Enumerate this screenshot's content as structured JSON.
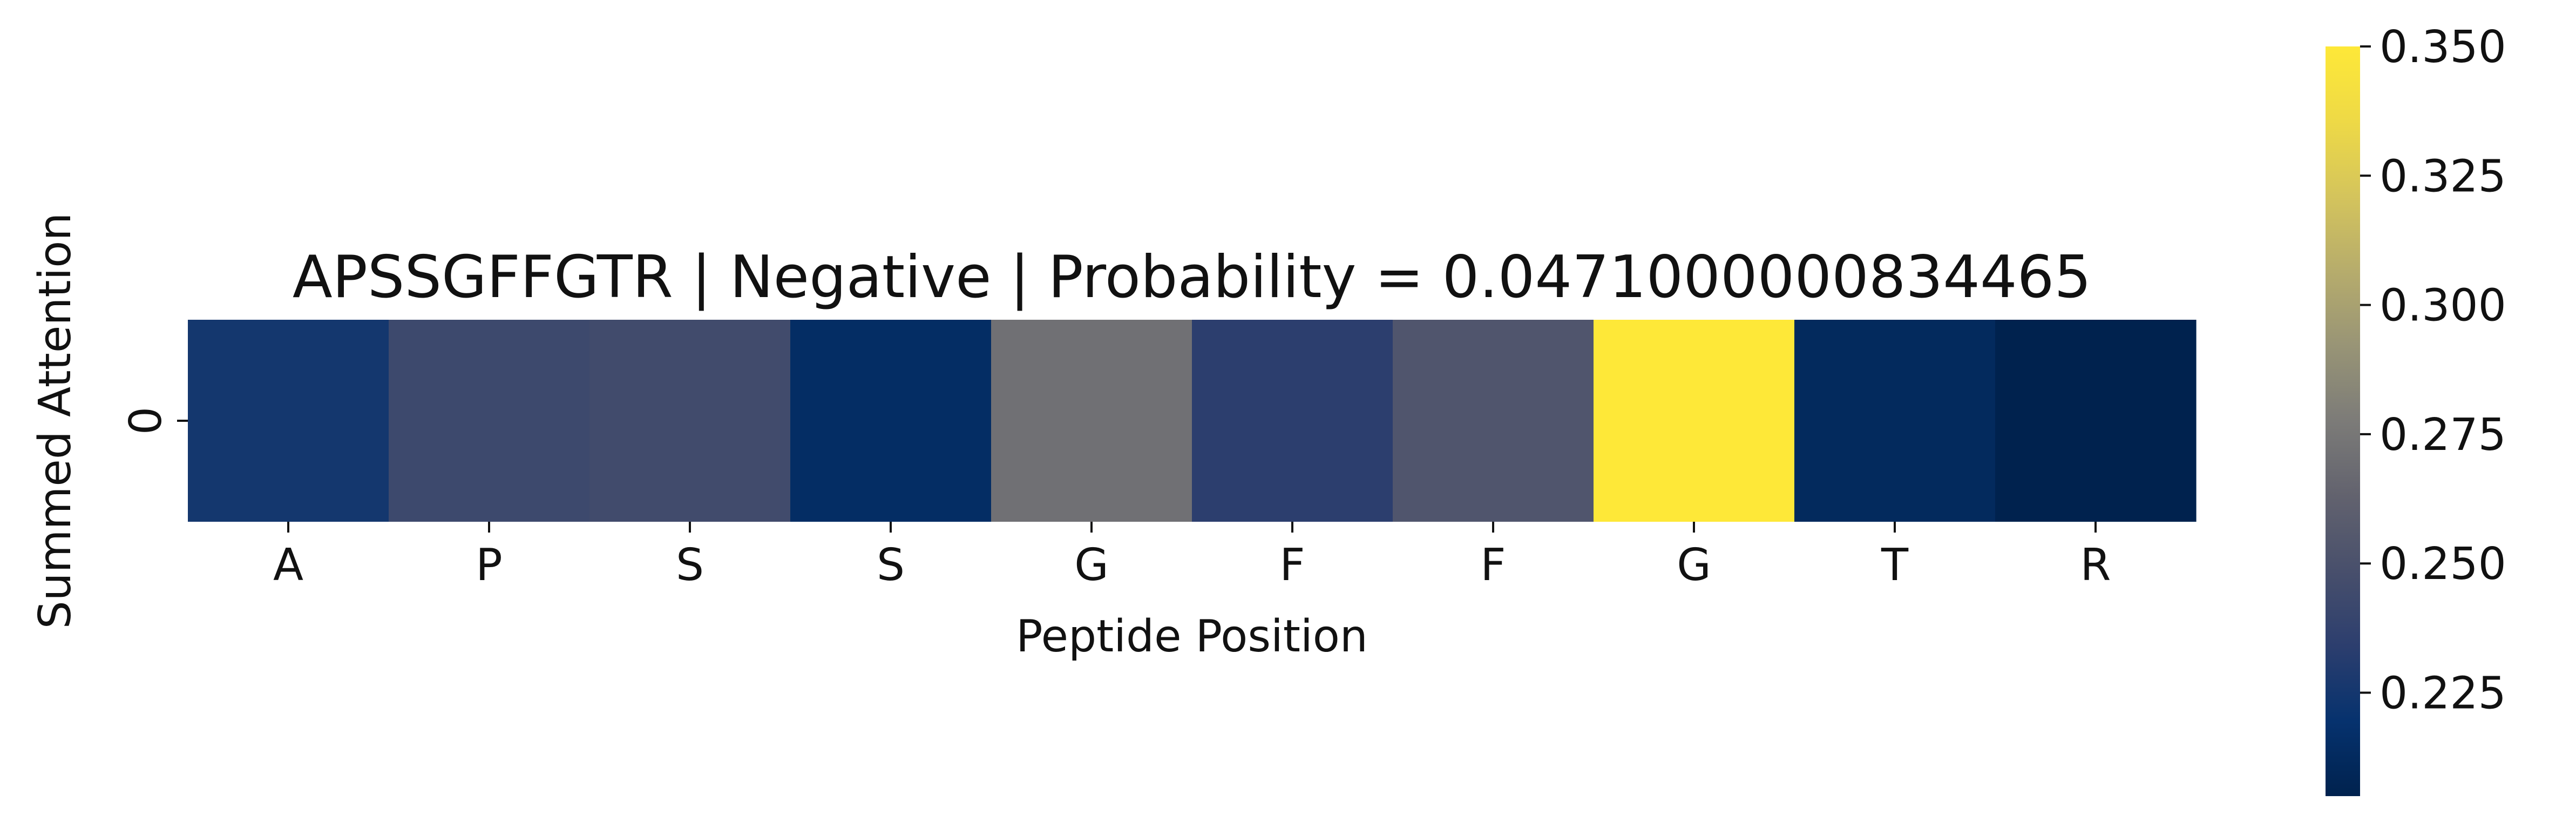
{
  "chart_data": {
    "type": "heatmap",
    "title": "APSSGFFGTR | Negative | Probability = 0.0471000000834465",
    "xlabel": "Peptide Position",
    "ylabel": "Summed Attention",
    "x_tick_labels": [
      "A",
      "P",
      "S",
      "S",
      "G",
      "F",
      "F",
      "G",
      "T",
      "R"
    ],
    "y_tick_labels": [
      "0"
    ],
    "values": [
      [
        0.225,
        0.243,
        0.245,
        0.215,
        0.271,
        0.234,
        0.253,
        0.35,
        0.212,
        0.205
      ]
    ],
    "colormap": "cividis",
    "colorbar": {
      "range": [
        0.205,
        0.35
      ],
      "ticks": [
        0.225,
        0.25,
        0.275,
        0.3,
        0.325,
        0.35
      ],
      "tick_labels": [
        "0.225",
        "0.250",
        "0.275",
        "0.300",
        "0.325",
        "0.350"
      ]
    },
    "grid": false,
    "legend": "colorbar-right"
  }
}
